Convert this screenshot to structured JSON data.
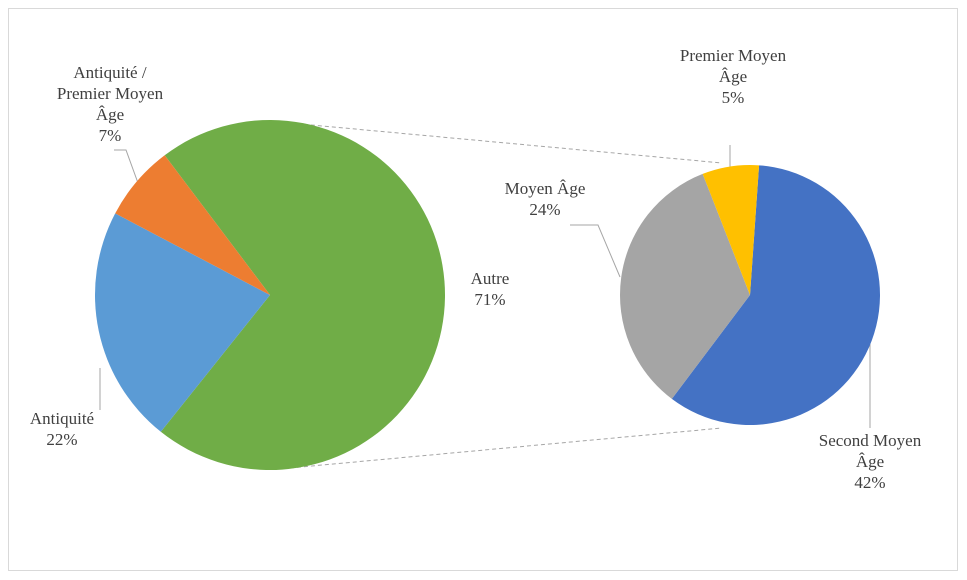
{
  "chart_data": [
    {
      "type": "pie",
      "categories": [
        "Autre",
        "Antiquité",
        "Antiquité / Premier Moyen Âge"
      ],
      "values": [
        71,
        22,
        7
      ],
      "value_labels": [
        "71%",
        "22%",
        "7%"
      ],
      "colors": [
        "#70ad47",
        "#5b9bd5",
        "#ed7d31"
      ]
    },
    {
      "type": "pie",
      "categories": [
        "Second Moyen Âge",
        "Moyen Âge",
        "Premier Moyen Âge"
      ],
      "values": [
        42,
        24,
        5
      ],
      "value_labels": [
        "42%",
        "24%",
        "5%"
      ],
      "colors": [
        "#4472c4",
        "#a5a5a5",
        "#ffc000"
      ]
    }
  ]
}
